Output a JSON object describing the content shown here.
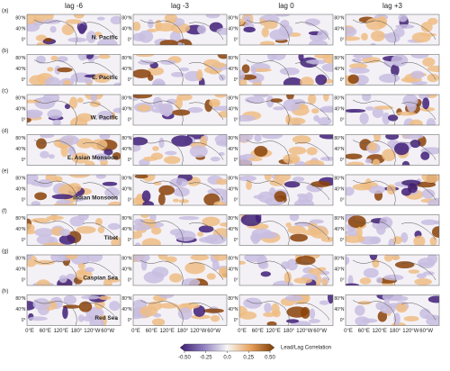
{
  "columns": [
    "lag -6",
    "lag -3",
    "lag 0",
    "lag +3"
  ],
  "rows": [
    {
      "letter": "(a)",
      "region": "N. Pacific"
    },
    {
      "letter": "(b)",
      "region": "E. Pacific"
    },
    {
      "letter": "(c)",
      "region": "W. Pacific"
    },
    {
      "letter": "(d)",
      "region": "E. Asian Monsoon"
    },
    {
      "letter": "(e)",
      "region": "Indian Monsoon"
    },
    {
      "letter": "(f)",
      "region": "Tibet"
    },
    {
      "letter": "(g)",
      "region": "Caspian Sea"
    },
    {
      "letter": "(h)",
      "region": "Red Sea"
    }
  ],
  "y_labels": [
    "80°N",
    "40°N",
    "0°"
  ],
  "x_labels": [
    "0°E",
    "60°E",
    "120°E",
    "180°",
    "120°W",
    "60°W"
  ],
  "colorbar": {
    "label": "Lead/Lag Correlation",
    "lim": [
      -0.5,
      0.5
    ],
    "ticks": [
      {
        "value": -0.5,
        "label": "-0.50"
      },
      {
        "value": -0.25,
        "label": "-0.25"
      },
      {
        "value": 0,
        "label": "0.0"
      },
      {
        "value": 0.25,
        "label": "0.25"
      },
      {
        "value": 0.5,
        "label": "0.50"
      }
    ]
  }
}
